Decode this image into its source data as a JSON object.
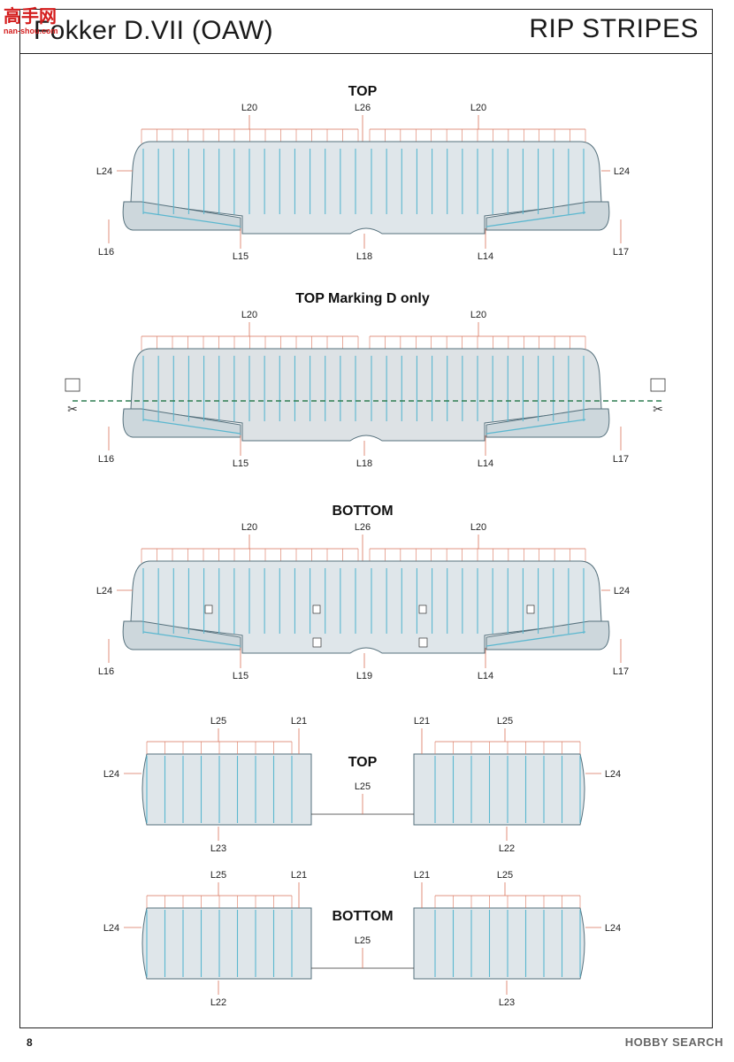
{
  "header": {
    "logo_text": "高手网",
    "logo_sub": "nan-shou.com",
    "title": "Fokker D.VII (OAW)",
    "section_title": "RIP STRIPES"
  },
  "page_number": "8",
  "watermark": "HOBBY SEARCH",
  "colors": {
    "wing_fill": "#dfe6ea",
    "rib_blue": "#5bb7cf",
    "leader_red": "#d9735a",
    "cut_green": "#2e7d52"
  },
  "icons": {
    "scissors": "scissors-icon",
    "decal": "decal-sheet-icon"
  },
  "upper_wing_top": {
    "heading": "TOP",
    "labels": {
      "left_top": "L20",
      "center_top": "L26",
      "right_top": "L20",
      "left_side": "L24",
      "right_side": "L24",
      "left_tip": "L16",
      "left_aileron": "L15",
      "center": "L18",
      "right_aileron": "L14",
      "right_tip": "L17"
    }
  },
  "upper_wing_top_d": {
    "heading": "TOP Marking D only",
    "labels": {
      "left_top": "L20",
      "right_top": "L20",
      "left_tip": "L16",
      "left_aileron": "L15",
      "center": "L18",
      "right_aileron": "L14",
      "right_tip": "L17"
    }
  },
  "upper_wing_bottom": {
    "heading": "BOTTOM",
    "labels": {
      "center_top": "L26",
      "left_top": "L20",
      "right_top": "L20",
      "left_side": "L24",
      "right_side": "L24",
      "left_tip": "L16",
      "left_aileron": "L15",
      "center": "L19",
      "right_aileron": "L14",
      "right_tip": "L17"
    }
  },
  "lower_wing_top": {
    "heading": "TOP",
    "labels": {
      "left_ribs": "L25",
      "left_edge": "L21",
      "right_edge": "L21",
      "right_ribs": "L25",
      "left_side": "L24",
      "right_side": "L24",
      "center": "L25",
      "left_bottom": "L23",
      "right_bottom": "L22"
    }
  },
  "lower_wing_bottom": {
    "heading": "BOTTOM",
    "labels": {
      "left_ribs": "L25",
      "left_edge": "L21",
      "right_edge": "L21",
      "right_ribs": "L25",
      "left_side": "L24",
      "right_side": "L24",
      "center": "L25",
      "left_bottom": "L22",
      "right_bottom": "L23"
    }
  }
}
